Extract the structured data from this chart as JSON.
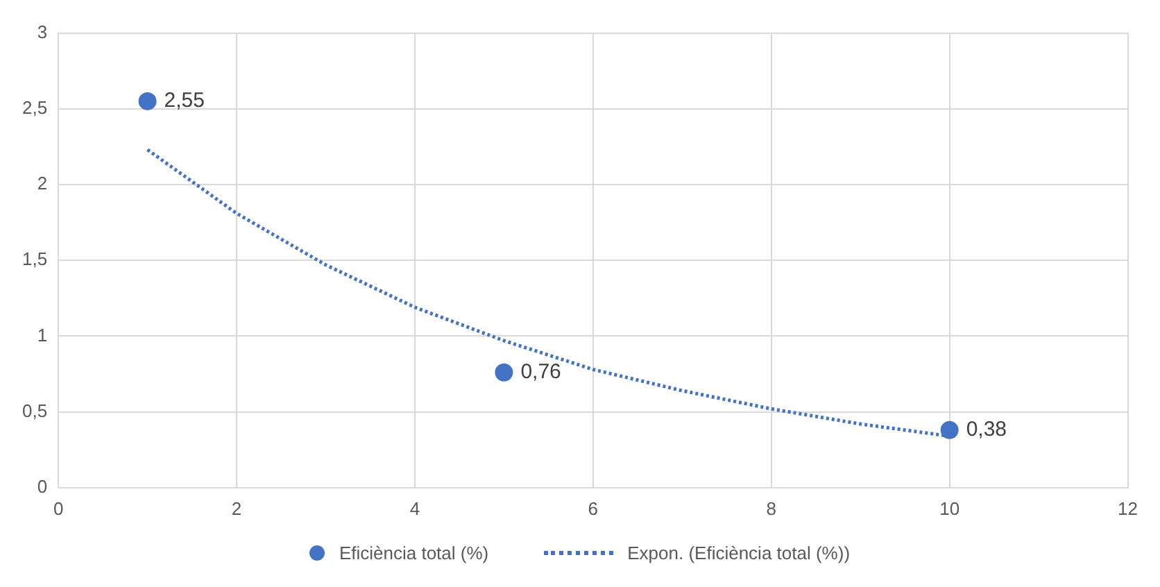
{
  "chart_data": {
    "type": "scatter",
    "xlim": [
      0,
      12
    ],
    "xticks": [
      0,
      2,
      4,
      6,
      8,
      10,
      12
    ],
    "ylim": [
      0,
      3
    ],
    "yticks": [
      0,
      {
        "value": 0.5,
        "label": "0,5"
      },
      1,
      {
        "value": 1.5,
        "label": "1,5"
      },
      2,
      {
        "value": 2.5,
        "label": "2,5"
      },
      3
    ],
    "grid": true,
    "legend": "bottom",
    "series": [
      {
        "name": "Eficiència total (%)",
        "marker": "circle",
        "color": "#4472c4",
        "x": [
          1,
          5,
          10
        ],
        "values": [
          2.55,
          0.76,
          0.38
        ],
        "value_labels": [
          "2,55",
          "0,76",
          "0,38"
        ]
      },
      {
        "name": "Expon. (Eficiència total (%))",
        "type": "line",
        "marker": "none",
        "line_style": "dotted",
        "color": "#4472c4",
        "x": [
          1,
          2,
          3,
          4,
          5,
          6,
          7,
          8,
          9,
          10
        ],
        "values": [
          2.23,
          1.81,
          1.47,
          1.19,
          0.97,
          0.78,
          0.64,
          0.52,
          0.42,
          0.34
        ]
      }
    ]
  }
}
